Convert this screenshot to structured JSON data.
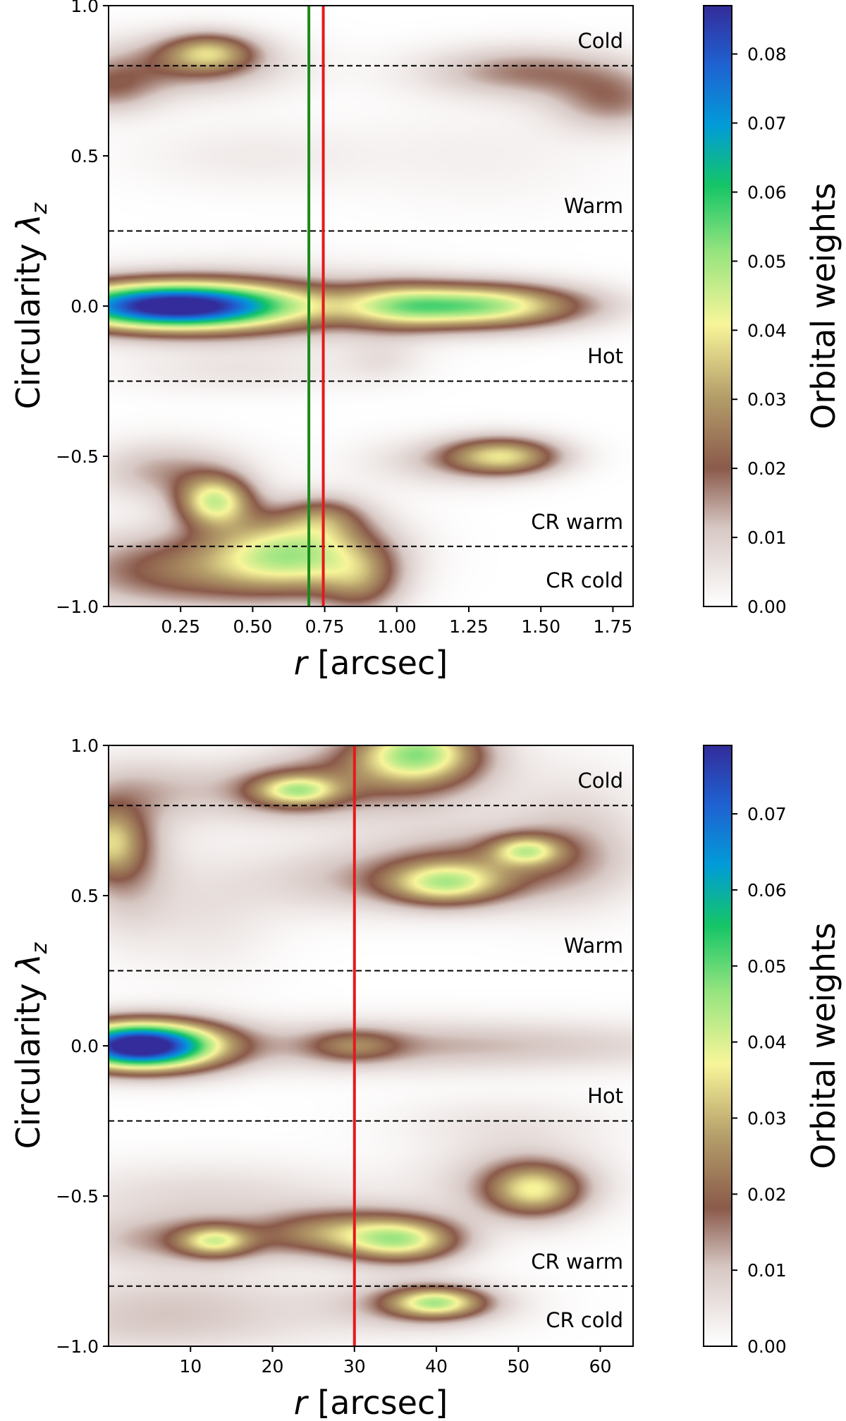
{
  "chart_data": [
    {
      "type": "heatmap",
      "panel": "top",
      "xlabel_var": "r",
      "xlabel_unit": "[arcsec]",
      "ylabel_main": "Circularity ",
      "ylabel_sym": "λ",
      "ylabel_sub": "z",
      "colorbar_label": "Orbital weights",
      "xlim": [
        0,
        1.82
      ],
      "ylim": [
        -1.0,
        1.0
      ],
      "xticks": [
        0.25,
        0.5,
        0.75,
        1.0,
        1.25,
        1.5,
        1.75
      ],
      "xtick_labels": [
        "0.25",
        "0.50",
        "0.75",
        "1.00",
        "1.25",
        "1.50",
        "1.75"
      ],
      "yticks": [
        -1.0,
        -0.5,
        0.0,
        0.5,
        1.0
      ],
      "ytick_labels": [
        "−1.0",
        "−0.5",
        "0.0",
        "0.5",
        "1.0"
      ],
      "colorbar_range": [
        0,
        0.087
      ],
      "colorbar_ticks": [
        0,
        0.01,
        0.02,
        0.03,
        0.04,
        0.05,
        0.06,
        0.07,
        0.08
      ],
      "colorbar_tick_labels": [
        "0.00",
        "0.01",
        "0.02",
        "0.03",
        "0.04",
        "0.05",
        "0.06",
        "0.07",
        "0.08"
      ],
      "boundaries": [
        0.8,
        0.25,
        -0.25,
        -0.8
      ],
      "regions": [
        {
          "label": "Cold",
          "y": 0.885
        },
        {
          "label": "Warm",
          "y": 0.335
        },
        {
          "label": "Hot",
          "y": -0.165
        },
        {
          "label": "CR warm",
          "y": -0.715
        },
        {
          "label": "CR cold",
          "y": -0.91
        }
      ],
      "vlines": [
        {
          "x": 0.695,
          "color": "#1a8a1a",
          "name": "green-line"
        },
        {
          "x": 0.745,
          "color": "#e31a1c",
          "name": "red-line"
        }
      ],
      "blobs": [
        {
          "x": 0.22,
          "y": 0.0,
          "sx": 0.3,
          "sy": 0.055,
          "w": 0.087
        },
        {
          "x": 1.25,
          "y": 0.0,
          "sx": 0.27,
          "sy": 0.052,
          "w": 0.052
        },
        {
          "x": 0.5,
          "y": 0.0,
          "sx": 0.36,
          "sy": 0.09,
          "w": 0.012
        },
        {
          "x": 1.0,
          "y": 0.0,
          "sx": 0.12,
          "sy": 0.06,
          "w": 0.012
        },
        {
          "x": 0.35,
          "y": 0.845,
          "sx": 0.11,
          "sy": 0.045,
          "w": 0.026
        },
        {
          "x": 0.25,
          "y": 0.8,
          "sx": 0.25,
          "sy": 0.07,
          "w": 0.016
        },
        {
          "x": 0.0,
          "y": 0.72,
          "sx": 0.12,
          "sy": 0.06,
          "w": 0.014
        },
        {
          "x": 1.45,
          "y": 0.78,
          "sx": 0.25,
          "sy": 0.06,
          "w": 0.017
        },
        {
          "x": 1.75,
          "y": 0.68,
          "sx": 0.15,
          "sy": 0.07,
          "w": 0.016
        },
        {
          "x": 0.5,
          "y": 0.5,
          "sx": 0.3,
          "sy": 0.08,
          "w": 0.004
        },
        {
          "x": 1.3,
          "y": 0.5,
          "sx": 0.3,
          "sy": 0.12,
          "w": 0.003
        },
        {
          "x": 0.45,
          "y": -0.22,
          "sx": 0.3,
          "sy": 0.05,
          "w": 0.005
        },
        {
          "x": 0.95,
          "y": -0.18,
          "sx": 0.1,
          "sy": 0.05,
          "w": 0.005
        },
        {
          "x": 1.37,
          "y": -0.5,
          "sx": 0.14,
          "sy": 0.045,
          "w": 0.035
        },
        {
          "x": 1.15,
          "y": -0.52,
          "sx": 0.2,
          "sy": 0.06,
          "w": 0.008
        },
        {
          "x": 0.37,
          "y": -0.65,
          "sx": 0.09,
          "sy": 0.06,
          "w": 0.04
        },
        {
          "x": 0.2,
          "y": -0.55,
          "sx": 0.18,
          "sy": 0.07,
          "w": 0.014
        },
        {
          "x": 0.65,
          "y": -0.82,
          "sx": 0.2,
          "sy": 0.09,
          "w": 0.042
        },
        {
          "x": 0.25,
          "y": -0.88,
          "sx": 0.3,
          "sy": 0.09,
          "w": 0.022
        },
        {
          "x": 0.88,
          "y": -0.92,
          "sx": 0.1,
          "sy": 0.08,
          "w": 0.018
        },
        {
          "x": 0.75,
          "y": -0.7,
          "sx": 0.1,
          "sy": 0.05,
          "w": 0.015
        }
      ]
    },
    {
      "type": "heatmap",
      "panel": "bottom",
      "xlabel_var": "r",
      "xlabel_unit": "[arcsec]",
      "ylabel_main": "Circularity ",
      "ylabel_sym": "λ",
      "ylabel_sub": "z",
      "colorbar_label": "Orbital weights",
      "xlim": [
        0,
        64
      ],
      "ylim": [
        -1.0,
        1.0
      ],
      "xticks": [
        10,
        20,
        30,
        40,
        50,
        60
      ],
      "xtick_labels": [
        "10",
        "20",
        "30",
        "40",
        "50",
        "60"
      ],
      "yticks": [
        -1.0,
        -0.5,
        0.0,
        0.5,
        1.0
      ],
      "ytick_labels": [
        "−1.0",
        "−0.5",
        "0.0",
        "0.5",
        "1.0"
      ],
      "colorbar_range": [
        0,
        0.079
      ],
      "colorbar_ticks": [
        0,
        0.01,
        0.02,
        0.03,
        0.04,
        0.05,
        0.06,
        0.07
      ],
      "colorbar_tick_labels": [
        "0.00",
        "0.01",
        "0.02",
        "0.03",
        "0.04",
        "0.05",
        "0.06",
        "0.07"
      ],
      "boundaries": [
        0.8,
        0.25,
        -0.25,
        -0.8
      ],
      "regions": [
        {
          "label": "Cold",
          "y": 0.885
        },
        {
          "label": "Warm",
          "y": 0.335
        },
        {
          "label": "Hot",
          "y": -0.165
        },
        {
          "label": "CR warm",
          "y": -0.715
        },
        {
          "label": "CR cold",
          "y": -0.91
        }
      ],
      "vlines": [
        {
          "x": 30,
          "color": "#e31a1c",
          "name": "red-line"
        }
      ],
      "blobs": [
        {
          "x": 3,
          "y": 0.0,
          "sx": 6,
          "sy": 0.055,
          "w": 0.079
        },
        {
          "x": 10,
          "y": 0.0,
          "sx": 5,
          "sy": 0.06,
          "w": 0.015
        },
        {
          "x": 30,
          "y": 0.0,
          "sx": 4,
          "sy": 0.04,
          "w": 0.014
        },
        {
          "x": 38,
          "y": 0.0,
          "sx": 25,
          "sy": 0.06,
          "w": 0.012
        },
        {
          "x": 38,
          "y": 0.98,
          "sx": 5,
          "sy": 0.07,
          "w": 0.033
        },
        {
          "x": 35,
          "y": 0.92,
          "sx": 8,
          "sy": 0.1,
          "w": 0.018
        },
        {
          "x": 23,
          "y": 0.85,
          "sx": 3.5,
          "sy": 0.035,
          "w": 0.026
        },
        {
          "x": 22,
          "y": 0.85,
          "sx": 6,
          "sy": 0.07,
          "w": 0.014
        },
        {
          "x": 5,
          "y": 0.85,
          "sx": 8,
          "sy": 0.08,
          "w": 0.01
        },
        {
          "x": 0,
          "y": 0.68,
          "sx": 3,
          "sy": 0.08,
          "w": 0.024
        },
        {
          "x": 2,
          "y": 0.6,
          "sx": 4,
          "sy": 0.15,
          "w": 0.012
        },
        {
          "x": 41,
          "y": 0.54,
          "sx": 5,
          "sy": 0.05,
          "w": 0.031
        },
        {
          "x": 51,
          "y": 0.65,
          "sx": 3,
          "sy": 0.035,
          "w": 0.026
        },
        {
          "x": 46,
          "y": 0.6,
          "sx": 10,
          "sy": 0.09,
          "w": 0.016
        },
        {
          "x": 28,
          "y": 0.55,
          "sx": 8,
          "sy": 0.08,
          "w": 0.008
        },
        {
          "x": 12,
          "y": 0.45,
          "sx": 6,
          "sy": 0.15,
          "w": 0.005
        },
        {
          "x": 57,
          "y": 0.7,
          "sx": 6,
          "sy": 0.15,
          "w": 0.008
        },
        {
          "x": 52,
          "y": -0.48,
          "sx": 4,
          "sy": 0.06,
          "w": 0.028
        },
        {
          "x": 50,
          "y": -0.45,
          "sx": 8,
          "sy": 0.1,
          "w": 0.01
        },
        {
          "x": 12,
          "y": -0.5,
          "sx": 14,
          "sy": 0.08,
          "w": 0.007
        },
        {
          "x": 36,
          "y": -0.65,
          "sx": 5,
          "sy": 0.05,
          "w": 0.032
        },
        {
          "x": 32,
          "y": -0.62,
          "sx": 6,
          "sy": 0.06,
          "w": 0.015
        },
        {
          "x": 13,
          "y": -0.65,
          "sx": 3,
          "sy": 0.035,
          "w": 0.026
        },
        {
          "x": 10,
          "y": -0.65,
          "sx": 10,
          "sy": 0.06,
          "w": 0.014
        },
        {
          "x": 25,
          "y": -0.62,
          "sx": 5,
          "sy": 0.05,
          "w": 0.012
        },
        {
          "x": 40,
          "y": -0.855,
          "sx": 4,
          "sy": 0.035,
          "w": 0.033
        },
        {
          "x": 38,
          "y": -0.86,
          "sx": 8,
          "sy": 0.06,
          "w": 0.012
        },
        {
          "x": 8,
          "y": -0.85,
          "sx": 12,
          "sy": 0.07,
          "w": 0.008
        },
        {
          "x": 5,
          "y": -0.95,
          "sx": 15,
          "sy": 0.06,
          "w": 0.006
        },
        {
          "x": 48,
          "y": -0.25,
          "sx": 10,
          "sy": 0.06,
          "w": 0.004
        }
      ]
    }
  ]
}
